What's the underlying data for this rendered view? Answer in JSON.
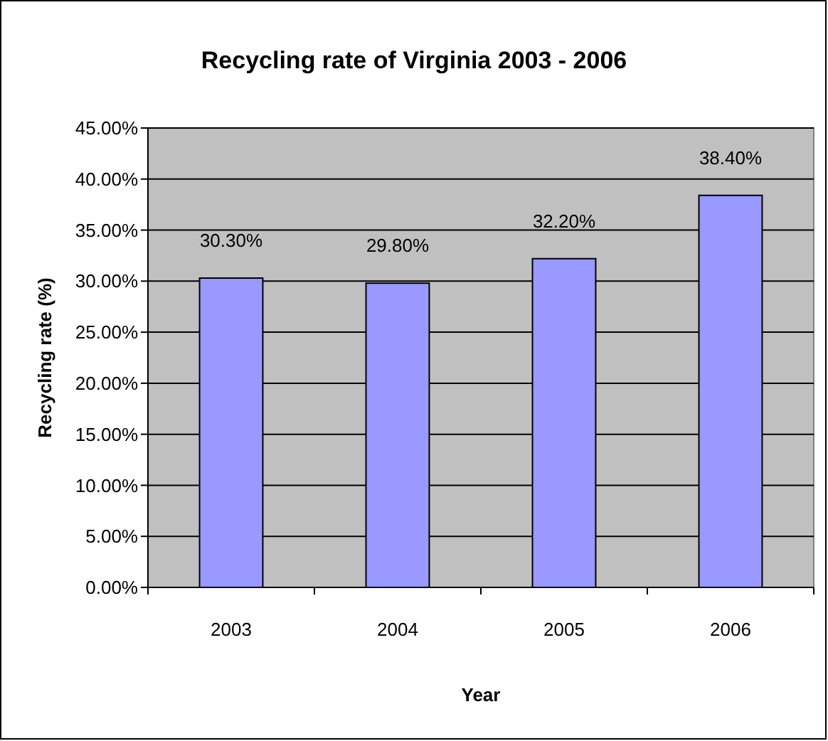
{
  "chart_data": {
    "type": "bar",
    "title": "Recycling rate of Virginia 2003 - 2006",
    "xlabel": "Year",
    "ylabel": "Recycling rate (%)",
    "categories": [
      "2003",
      "2004",
      "2005",
      "2006"
    ],
    "values": [
      30.3,
      29.8,
      32.2,
      38.4
    ],
    "value_labels": [
      "30.30%",
      "29.80%",
      "32.20%",
      "38.40%"
    ],
    "color": "#9999ff",
    "ylim": [
      0,
      45
    ],
    "yticks": [
      {
        "value": 0,
        "label": "0.00%"
      },
      {
        "value": 5,
        "label": "5.00%"
      },
      {
        "value": 10,
        "label": "10.00%"
      },
      {
        "value": 15,
        "label": "15.00%"
      },
      {
        "value": 20,
        "label": "20.00%"
      },
      {
        "value": 25,
        "label": "25.00%"
      },
      {
        "value": 30,
        "label": "30.00%"
      },
      {
        "value": 35,
        "label": "35.00%"
      },
      {
        "value": 40,
        "label": "40.00%"
      },
      {
        "value": 45,
        "label": "45.00%"
      }
    ],
    "grid": "y",
    "legend": false
  }
}
